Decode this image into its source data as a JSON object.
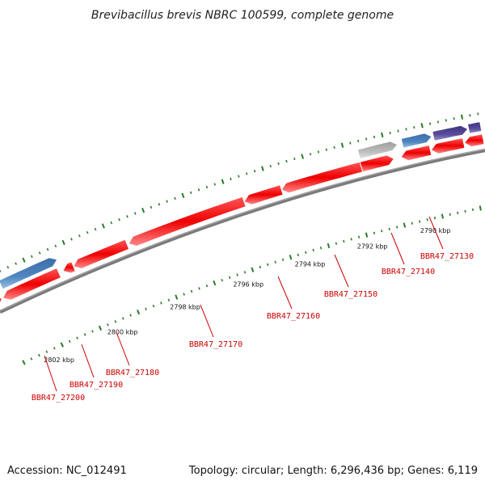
{
  "title": "Brevibacillus brevis NBRC 100599, complete genome",
  "footer": {
    "accession": "Accession: NC_012491",
    "summary": "Topology: circular; Length: 6,296,436 bp; Genes: 6,119"
  },
  "colors": {
    "gene_forward": "#ee1111",
    "gene_reverse_blue": "#4a7fb8",
    "gene_reverse_gray": "#b8b8b8",
    "gene_purple": "#5a4c9c",
    "genome_line": "#7a7a7a",
    "ticks": "#2a7a2a",
    "label": "#cc0000"
  },
  "kbp_ticks": [
    "2790 kbp",
    "2792 kbp",
    "2794 kbp",
    "2796 kbp",
    "2798 kbp",
    "2800 kbp",
    "2802 kbp"
  ],
  "genes": [
    {
      "label": "BBR47_27130"
    },
    {
      "label": "BBR47_27140"
    },
    {
      "label": "BBR47_27150"
    },
    {
      "label": "BBR47_27160"
    },
    {
      "label": "BBR47_27170"
    },
    {
      "label": "BBR47_27180"
    },
    {
      "label": "BBR47_27190"
    },
    {
      "label": "BBR47_27200"
    }
  ]
}
